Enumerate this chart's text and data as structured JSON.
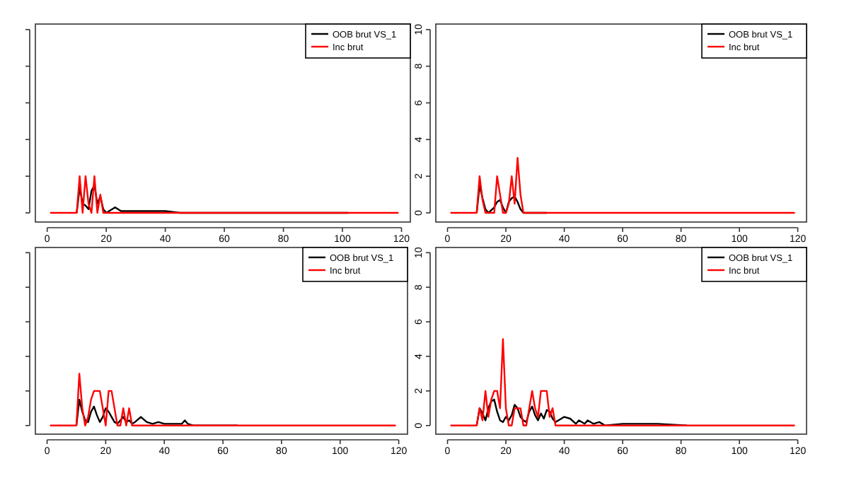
{
  "chart_data": [
    {
      "type": "line",
      "xlim": [
        -4,
        123
      ],
      "ylim": [
        -0.5,
        10.3
      ],
      "xticks": [
        0,
        20,
        40,
        60,
        80,
        100,
        120
      ],
      "yticks": [
        0,
        2,
        4,
        6,
        8,
        10
      ],
      "tick_labels": "x",
      "legend": "top right",
      "grid": false,
      "series": [
        {
          "name": "OOB brut VS_1",
          "color": "#000000",
          "x": [
            10,
            11,
            12,
            13,
            14,
            15,
            16,
            17,
            18,
            19,
            20,
            23,
            25,
            30,
            35,
            40,
            45,
            102
          ],
          "values": [
            0,
            1.4,
            0.5,
            0.4,
            0.2,
            1.2,
            1.5,
            0.5,
            0.9,
            0.2,
            0,
            0.3,
            0.1,
            0.1,
            0.1,
            0.1,
            0,
            0
          ]
        },
        {
          "name": "Inc brut",
          "color": "#ff0000",
          "x": [
            1,
            10,
            11,
            12,
            13,
            14,
            15,
            16,
            17,
            18,
            19,
            119
          ],
          "values": [
            0,
            0,
            2,
            0,
            2,
            0.5,
            0,
            2,
            0,
            1,
            0,
            0
          ]
        }
      ]
    },
    {
      "type": "line",
      "xlim": [
        -4,
        123
      ],
      "ylim": [
        -0.5,
        10.3
      ],
      "xticks": [
        0,
        20,
        40,
        60,
        80,
        100,
        120
      ],
      "yticks": [
        0,
        2,
        4,
        6,
        8,
        10
      ],
      "legend": "top right",
      "grid": false,
      "series": [
        {
          "name": "OOB brut VS_1",
          "color": "#000000",
          "x": [
            10,
            11,
            12,
            13,
            14,
            16,
            17,
            18,
            19,
            20,
            21,
            22,
            23,
            24,
            25,
            26,
            34
          ],
          "values": [
            0,
            1.5,
            0.8,
            0.2,
            0,
            0.3,
            0.6,
            0.7,
            0.3,
            0,
            0.6,
            0.8,
            0.9,
            0.6,
            0.2,
            0,
            0
          ]
        },
        {
          "name": "Inc brut",
          "color": "#ff0000",
          "x": [
            1,
            10,
            11,
            12,
            13,
            16,
            17,
            18,
            19,
            20,
            21,
            22,
            23,
            24,
            25,
            26,
            119
          ],
          "values": [
            0,
            0,
            2,
            0.7,
            0,
            0,
            2,
            1,
            0,
            0,
            0.5,
            2,
            0.5,
            3,
            1,
            0,
            0
          ]
        }
      ]
    },
    {
      "type": "line",
      "xlim": [
        -4,
        123
      ],
      "ylim": [
        -0.5,
        10.3
      ],
      "xticks": [
        0,
        20,
        40,
        60,
        80,
        100,
        120
      ],
      "yticks": [
        0,
        2,
        4,
        6,
        8,
        10
      ],
      "tick_labels": "x",
      "legend": "top right",
      "grid": false,
      "series": [
        {
          "name": "OOB brut VS_1",
          "color": "#000000",
          "x": [
            10,
            11,
            12,
            13,
            14,
            15,
            16,
            17,
            18,
            19,
            20,
            21,
            22,
            23,
            24,
            25,
            26,
            27,
            28,
            29,
            30,
            32,
            34,
            36,
            38,
            40,
            44,
            46,
            47,
            48,
            50,
            65
          ],
          "values": [
            0,
            1.5,
            0.8,
            0.3,
            0.2,
            0.8,
            1.1,
            0.6,
            0.2,
            0.5,
            1,
            0.8,
            0.5,
            0.2,
            0.1,
            0.3,
            0.5,
            0.2,
            0.3,
            0.1,
            0.2,
            0.5,
            0.2,
            0.1,
            0.2,
            0.1,
            0.1,
            0.1,
            0.3,
            0.1,
            0,
            0
          ]
        },
        {
          "name": "Inc brut",
          "color": "#ff0000",
          "x": [
            1,
            10,
            11,
            12,
            13,
            14,
            15,
            16,
            17,
            18,
            19,
            20,
            21,
            22,
            23,
            24,
            25,
            26,
            27,
            28,
            29,
            119
          ],
          "values": [
            0,
            0,
            3,
            1,
            0,
            0.5,
            1.5,
            2,
            2,
            2,
            1,
            0,
            2,
            2,
            1,
            0,
            0,
            1,
            0,
            1,
            0,
            0
          ]
        }
      ]
    },
    {
      "type": "line",
      "xlim": [
        -4,
        123
      ],
      "ylim": [
        -0.5,
        10.3
      ],
      "xticks": [
        0,
        20,
        40,
        60,
        80,
        100,
        120
      ],
      "yticks": [
        0,
        2,
        4,
        6,
        8,
        10
      ],
      "legend": "top right",
      "grid": false,
      "series": [
        {
          "name": "OOB brut VS_1",
          "color": "#000000",
          "x": [
            10,
            11,
            12,
            13,
            14,
            15,
            16,
            17,
            18,
            19,
            20,
            21,
            22,
            23,
            24,
            25,
            26,
            27,
            28,
            29,
            30,
            31,
            32,
            33,
            34,
            35,
            36,
            37,
            38,
            40,
            42,
            44,
            45,
            47,
            48,
            50,
            52,
            54,
            60,
            64,
            70,
            72,
            82
          ],
          "values": [
            0,
            1,
            0.7,
            0.3,
            1,
            1.4,
            1.5,
            0.8,
            0.3,
            0.2,
            0.5,
            0.3,
            0.6,
            1.2,
            1,
            0.5,
            0.3,
            0.2,
            0.8,
            1.1,
            0.6,
            0.3,
            0.7,
            0.4,
            0.9,
            0.8,
            0.4,
            0.2,
            0.3,
            0.5,
            0.4,
            0.1,
            0.3,
            0.1,
            0.3,
            0.1,
            0.2,
            0,
            0.1,
            0.1,
            0.1,
            0.1,
            0
          ]
        },
        {
          "name": "Inc brut",
          "color": "#ff0000",
          "x": [
            1,
            10,
            11,
            12,
            13,
            14,
            15,
            16,
            17,
            18,
            19,
            20,
            21,
            22,
            23,
            24,
            25,
            26,
            27,
            28,
            29,
            30,
            31,
            32,
            33,
            34,
            35,
            36,
            37,
            119
          ],
          "values": [
            0,
            0,
            1,
            0.3,
            2,
            0.5,
            1.5,
            2,
            2,
            1,
            5,
            1,
            0,
            0,
            1,
            1,
            1,
            0,
            0,
            1,
            2,
            1,
            0.5,
            2,
            2,
            2,
            0.5,
            1,
            0,
            0
          ]
        }
      ]
    }
  ]
}
